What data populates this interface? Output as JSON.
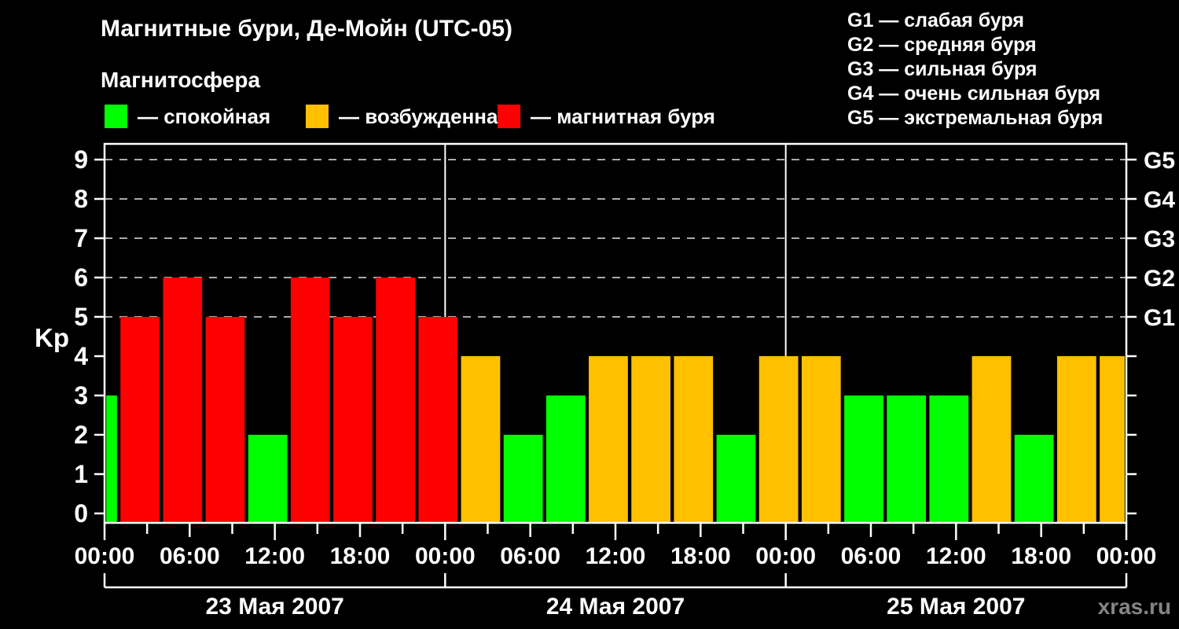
{
  "title": "Магнитные бури, Де-Мойн (UTC-05)",
  "subtitle": "Магнитосфера",
  "legend": [
    {
      "key": "quiet",
      "label": "— спокойная",
      "color": "#00ff00"
    },
    {
      "key": "active",
      "label": "— возбужденная",
      "color": "#ffc000"
    },
    {
      "key": "storm",
      "label": "— магнитная буря",
      "color": "#ff0000"
    }
  ],
  "storm_scale": [
    "G1 — слабая буря",
    "G2 — средняя буря",
    "G3 — сильная буря",
    "G4 — очень сильная буря",
    "G5 — экстремальная буря"
  ],
  "watermark": "xras.ru",
  "chart_data": {
    "type": "bar",
    "title": "Магнитные бури, Де-Мойн (UTC-05)",
    "ylabel": "Kp",
    "ylim": [
      0,
      9
    ],
    "y_ticks": [
      0,
      1,
      2,
      3,
      4,
      5,
      6,
      7,
      8,
      9
    ],
    "gridlines_kp": [
      5,
      6,
      7,
      8,
      9
    ],
    "grid_color": "#aaaaaa",
    "x_hours_range": [
      0,
      72
    ],
    "x_tick_step_h": 3,
    "x_label_step_h": 6,
    "x_tick_labels": [
      {
        "h": 0,
        "label": "00:00"
      },
      {
        "h": 6,
        "label": "06:00"
      },
      {
        "h": 12,
        "label": "12:00"
      },
      {
        "h": 18,
        "label": "18:00"
      },
      {
        "h": 24,
        "label": "00:00"
      },
      {
        "h": 30,
        "label": "06:00"
      },
      {
        "h": 36,
        "label": "12:00"
      },
      {
        "h": 42,
        "label": "18:00"
      },
      {
        "h": 48,
        "label": "00:00"
      },
      {
        "h": 54,
        "label": "06:00"
      },
      {
        "h": 60,
        "label": "12:00"
      },
      {
        "h": 66,
        "label": "18:00"
      },
      {
        "h": 72,
        "label": "00:00"
      }
    ],
    "day_boundaries_h": [
      24,
      48
    ],
    "days": [
      {
        "label": "23 Мая 2007",
        "start_h": 0,
        "end_h": 24
      },
      {
        "label": "24 Мая 2007",
        "start_h": 24,
        "end_h": 48
      },
      {
        "label": "25 Мая 2007",
        "start_h": 48,
        "end_h": 72
      }
    ],
    "right_axis_labels": [
      {
        "code": "G1",
        "kp": 5
      },
      {
        "code": "G2",
        "kp": 6
      },
      {
        "code": "G3",
        "kp": 7
      },
      {
        "code": "G4",
        "kp": 8
      },
      {
        "code": "G5",
        "kp": 9
      }
    ],
    "colors": {
      "quiet": "#00ff00",
      "active": "#ffc000",
      "storm": "#ff0000"
    },
    "bars": [
      {
        "start_h": 0,
        "end_h": 1,
        "kp": 3,
        "state": "quiet"
      },
      {
        "start_h": 1,
        "end_h": 4,
        "kp": 5,
        "state": "storm"
      },
      {
        "start_h": 4,
        "end_h": 7,
        "kp": 6,
        "state": "storm"
      },
      {
        "start_h": 7,
        "end_h": 10,
        "kp": 5,
        "state": "storm"
      },
      {
        "start_h": 10,
        "end_h": 13,
        "kp": 2,
        "state": "quiet"
      },
      {
        "start_h": 13,
        "end_h": 16,
        "kp": 6,
        "state": "storm"
      },
      {
        "start_h": 16,
        "end_h": 19,
        "kp": 5,
        "state": "storm"
      },
      {
        "start_h": 19,
        "end_h": 22,
        "kp": 6,
        "state": "storm"
      },
      {
        "start_h": 22,
        "end_h": 25,
        "kp": 5,
        "state": "storm"
      },
      {
        "start_h": 25,
        "end_h": 28,
        "kp": 4,
        "state": "active"
      },
      {
        "start_h": 28,
        "end_h": 31,
        "kp": 2,
        "state": "quiet"
      },
      {
        "start_h": 31,
        "end_h": 34,
        "kp": 3,
        "state": "quiet"
      },
      {
        "start_h": 34,
        "end_h": 37,
        "kp": 4,
        "state": "active"
      },
      {
        "start_h": 37,
        "end_h": 40,
        "kp": 4,
        "state": "active"
      },
      {
        "start_h": 40,
        "end_h": 43,
        "kp": 4,
        "state": "active"
      },
      {
        "start_h": 43,
        "end_h": 46,
        "kp": 2,
        "state": "quiet"
      },
      {
        "start_h": 46,
        "end_h": 49,
        "kp": 4,
        "state": "active"
      },
      {
        "start_h": 49,
        "end_h": 52,
        "kp": 4,
        "state": "active"
      },
      {
        "start_h": 52,
        "end_h": 55,
        "kp": 3,
        "state": "quiet"
      },
      {
        "start_h": 55,
        "end_h": 58,
        "kp": 3,
        "state": "quiet"
      },
      {
        "start_h": 58,
        "end_h": 61,
        "kp": 3,
        "state": "quiet"
      },
      {
        "start_h": 61,
        "end_h": 64,
        "kp": 4,
        "state": "active"
      },
      {
        "start_h": 64,
        "end_h": 67,
        "kp": 2,
        "state": "quiet"
      },
      {
        "start_h": 67,
        "end_h": 70,
        "kp": 4,
        "state": "active"
      },
      {
        "start_h": 70,
        "end_h": 72,
        "kp": 4,
        "state": "active"
      }
    ]
  }
}
